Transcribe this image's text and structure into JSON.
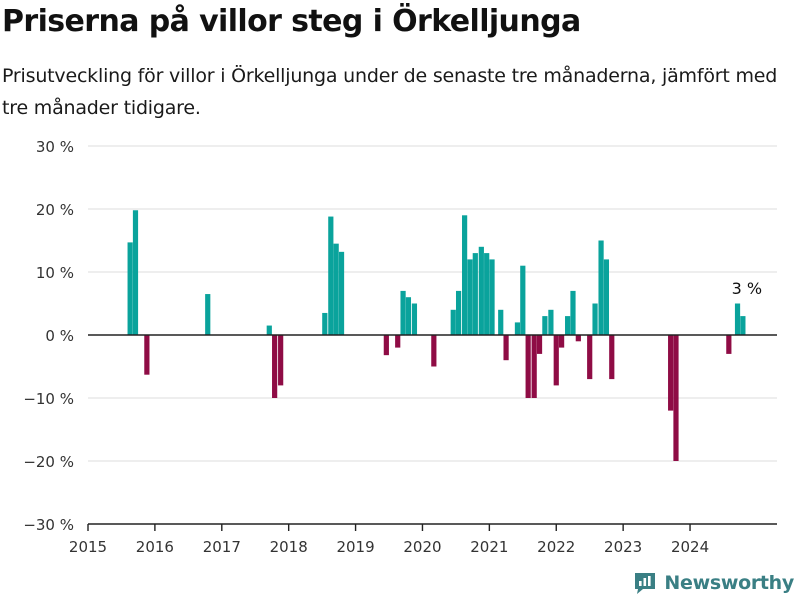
{
  "header": {
    "title": "Priserna på villor steg i Örkelljunga",
    "subtitle": "Prisutveckling för villor i Örkelljunga under de senaste tre månaderna, jämfört med tre månader tidigare."
  },
  "brand": {
    "name": "Newsworthy",
    "icon": "newsworthy-logo-icon",
    "color": "#3a7f84"
  },
  "colors": {
    "positive": "#0aa39c",
    "negative": "#8f0c45",
    "gridline": "#dddddd",
    "axis": "#222222"
  },
  "chart_data": {
    "type": "bar",
    "title": "Priserna på villor steg i Örkelljunga",
    "xlabel": "",
    "ylabel": "",
    "ylim": [
      -30,
      30
    ],
    "yticks": [
      30,
      20,
      10,
      0,
      -10,
      -20,
      -30
    ],
    "ytick_labels": [
      "30 %",
      "20 %",
      "10 %",
      "0 %",
      "−10 %",
      "−20 %",
      "−30 %"
    ],
    "xlim": [
      2015,
      2025.3
    ],
    "xticks": [
      2015,
      2016,
      2017,
      2018,
      2019,
      2020,
      2021,
      2022,
      2023,
      2024
    ],
    "xtick_labels": [
      "2015",
      "2016",
      "2017",
      "2018",
      "2019",
      "2020",
      "2021",
      "2022",
      "2023",
      "2024"
    ],
    "grid": true,
    "annotation": {
      "text": "3 %",
      "x": 2024.88,
      "y": 3
    },
    "x": [
      2015.63,
      2015.71,
      2015.88,
      2016.79,
      2017.71,
      2017.79,
      2017.88,
      2018.54,
      2018.63,
      2018.71,
      2018.79,
      2019.46,
      2019.63,
      2019.71,
      2019.79,
      2019.88,
      2020.17,
      2020.46,
      2020.54,
      2020.63,
      2020.71,
      2020.79,
      2020.88,
      2020.96,
      2021.04,
      2021.17,
      2021.25,
      2021.42,
      2021.5,
      2021.58,
      2021.67,
      2021.75,
      2021.83,
      2021.92,
      2022.0,
      2022.08,
      2022.17,
      2022.25,
      2022.33,
      2022.5,
      2022.58,
      2022.67,
      2022.75,
      2022.83,
      2023.71,
      2023.79,
      2024.58,
      2024.71,
      2024.79
    ],
    "values": [
      14.7,
      19.8,
      -6.3,
      6.5,
      1.5,
      -10.0,
      -8.0,
      3.5,
      18.8,
      14.5,
      13.2,
      -3.2,
      -2.0,
      7.0,
      6.0,
      5.0,
      -5.0,
      4.0,
      7.0,
      19.0,
      12.0,
      13.0,
      14.0,
      13.0,
      12.0,
      4.0,
      -4.0,
      2.0,
      11.0,
      -10.0,
      -10.0,
      -3.0,
      3.0,
      4.0,
      -8.0,
      -2.0,
      3.0,
      7.0,
      -1.0,
      -7.0,
      5.0,
      15.0,
      12.0,
      -7.0,
      -12.0,
      -20.0,
      -3.0,
      5.0,
      3.0
    ]
  }
}
